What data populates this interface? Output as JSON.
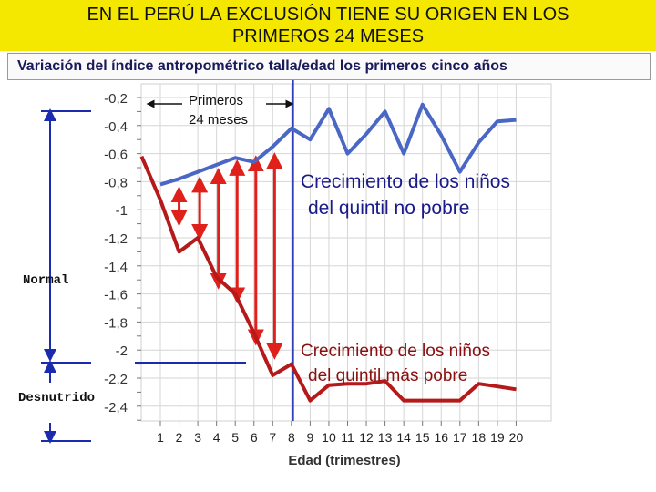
{
  "header": {
    "title_line1": "EN EL PERÚ LA EXCLUSIÓN TIENE SU ORIGEN EN LOS",
    "title_line2": "PRIMEROS 24 MESES",
    "subtitle": "Variación del índice antropométrico talla/edad los primeros cinco años"
  },
  "side_labels": {
    "normal": "Normal",
    "desnutrido": "Desnutrido"
  },
  "annotation": {
    "line1": "Primeros",
    "line2": "24 meses",
    "marker_x": 8
  },
  "colors": {
    "title_bg": "#f5e800",
    "non_poor": "#4a67c6",
    "poor": "#b5191a",
    "arrow": "#e0201a",
    "axis_blue": "#1a2bb0"
  },
  "chart_data": {
    "type": "line",
    "xlabel": "Edad (trimestres)",
    "x": [
      1,
      2,
      3,
      4,
      5,
      6,
      7,
      8,
      9,
      10,
      11,
      12,
      13,
      14,
      15,
      16,
      17,
      18,
      19,
      20
    ],
    "y_ticks": [
      -0.2,
      -0.4,
      -0.6,
      -0.8,
      -1,
      -1.2,
      -1.4,
      -1.6,
      -1.8,
      -2,
      -2.2,
      -2.4
    ],
    "y_tick_labels": [
      "-0,2",
      "-0,4",
      "-0,6",
      "-0,8",
      "-1",
      "-1,2",
      "-1,4",
      "-1,6",
      "-1,8",
      "-2",
      "-2,2",
      "-2,4"
    ],
    "ylim": [
      -2.55,
      -0.15
    ],
    "xlim": [
      0.5,
      20.5
    ],
    "grid": true,
    "series": [
      {
        "name": "Crecimiento de los niños del quintil no pobre",
        "label_line1": "Crecimiento de los niños",
        "label_line2": "del quintil no pobre",
        "x": [
          1,
          2,
          3,
          4,
          5,
          6,
          7,
          8,
          9,
          10,
          11,
          12,
          13,
          14,
          15,
          16,
          17,
          18,
          19,
          20
        ],
        "values": [
          -0.82,
          -0.78,
          -0.73,
          -0.68,
          -0.63,
          -0.66,
          -0.55,
          -0.42,
          -0.5,
          -0.28,
          -0.6,
          -0.46,
          -0.3,
          -0.6,
          -0.25,
          -0.47,
          -0.73,
          -0.52,
          -0.37,
          -0.36
        ]
      },
      {
        "name": "Crecimiento de los niños del quintil más pobre",
        "label_line1": "Crecimiento de los niños",
        "label_line2": "del quintil más pobre",
        "x": [
          0,
          1,
          2,
          3,
          4,
          5,
          6,
          7,
          8,
          9,
          10,
          11,
          12,
          13,
          14,
          15,
          16,
          17,
          18,
          19,
          20
        ],
        "values": [
          -0.62,
          -0.93,
          -1.3,
          -1.2,
          -1.48,
          -1.6,
          -1.88,
          -2.18,
          -2.1,
          -2.36,
          -2.25,
          -2.24,
          -2.24,
          -2.22,
          -2.36,
          -2.36,
          -2.36,
          -2.36,
          -2.24,
          -2.26,
          -2.28
        ]
      }
    ],
    "gap_arrows": [
      {
        "x": 2.0,
        "top": -0.85,
        "bottom": -1.1
      },
      {
        "x": 3.1,
        "top": -0.78,
        "bottom": -1.2
      },
      {
        "x": 4.1,
        "top": -0.72,
        "bottom": -1.55
      },
      {
        "x": 5.1,
        "top": -0.66,
        "bottom": -1.65
      },
      {
        "x": 6.1,
        "top": -0.63,
        "bottom": -1.95
      },
      {
        "x": 7.1,
        "top": -0.61,
        "bottom": -2.05
      }
    ]
  }
}
